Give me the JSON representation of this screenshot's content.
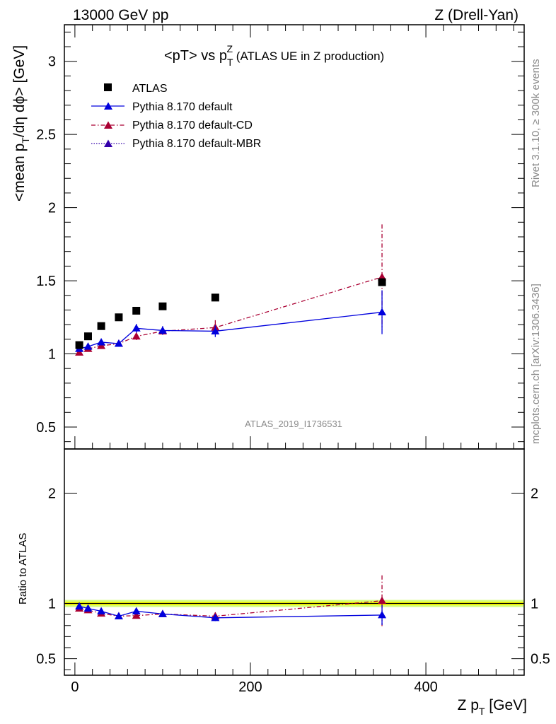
{
  "header": {
    "left": "13000 GeV pp",
    "right": "Z (Drell-Yan)"
  },
  "side_labels": {
    "rivet": "Rivet 3.1.10, ≥ 300k events",
    "mcplots": "mcplots.cern.ch [arXiv:1306.3436]"
  },
  "watermark": "ATLAS_2019_I1736531",
  "colors": {
    "atlas": "#000000",
    "default": "#0000dd",
    "cd": "#aa0033",
    "mbr": "#3300aa",
    "band_inner": "#ffff00",
    "band_outer": "#ccff66"
  },
  "chart_data": [
    {
      "type": "scatter",
      "panel": "main",
      "title_main": "<pT> vs p",
      "title_sup": "Z",
      "title_sub": "T",
      "title_tail": " (ATLAS UE in Z production)",
      "ylabel_pre": "<mean p",
      "ylabel_sub": "T",
      "ylabel_post": "/dη dϕ> [GeV]",
      "xlim": [
        -12,
        512
      ],
      "ylim": [
        0.35,
        3.25
      ],
      "yticks": [
        0.5,
        1,
        1.5,
        2,
        2.5,
        3
      ],
      "ytick_labels": [
        "0.5",
        "1",
        "1.5",
        "2",
        "2.5",
        "3"
      ],
      "legend_position": "top-left",
      "x": [
        5,
        15,
        30,
        50,
        70,
        100,
        160,
        350
      ],
      "series": [
        {
          "name": "ATLAS",
          "style": "markers",
          "values": [
            1.06,
            1.12,
            1.19,
            1.25,
            1.295,
            1.325,
            1.385,
            1.49
          ],
          "errors": [
            0.005,
            0.005,
            0.005,
            0.005,
            0.005,
            0.005,
            0.01,
            0.02
          ]
        },
        {
          "name": "Pythia 8.170 default",
          "style": "solid",
          "values": [
            1.035,
            1.05,
            1.08,
            1.07,
            1.175,
            1.16,
            1.155,
            1.285
          ],
          "errors": [
            0.015,
            0.015,
            0.015,
            0.015,
            0.03,
            0.03,
            0.04,
            0.15
          ]
        },
        {
          "name": "Pythia 8.170 default-CD",
          "style": "dashdot",
          "values": [
            1.01,
            1.035,
            1.055,
            1.07,
            1.12,
            1.155,
            1.18,
            1.525
          ],
          "errors": [
            0.015,
            0.015,
            0.015,
            0.015,
            0.025,
            0.03,
            0.05,
            0.36
          ]
        },
        {
          "name": "Pythia 8.170 default-MBR",
          "style": "dotted",
          "values": [],
          "errors": []
        }
      ]
    },
    {
      "type": "line",
      "panel": "ratio",
      "ylabel": "Ratio to ATLAS",
      "xlabel_pre": "Z p",
      "xlabel_sub": "T",
      "xlabel_post": " [GeV]",
      "xlim": [
        -12,
        512
      ],
      "ylim": [
        0.35,
        2.4
      ],
      "yticks": [
        0.5,
        1,
        2
      ],
      "ytick_labels": [
        "0.5",
        "1",
        "2"
      ],
      "xticks": [
        0,
        200,
        400
      ],
      "xtick_labels": [
        "0",
        "200",
        "400"
      ],
      "x": [
        5,
        15,
        30,
        50,
        70,
        100,
        160,
        350
      ],
      "series": [
        {
          "name": "Pythia 8.170 default",
          "values": [
            0.975,
            0.955,
            0.93,
            0.885,
            0.93,
            0.905,
            0.87,
            0.895
          ],
          "errors": [
            0.015,
            0.015,
            0.015,
            0.015,
            0.025,
            0.025,
            0.03,
            0.09
          ]
        },
        {
          "name": "Pythia 8.170 default-CD",
          "values": [
            0.955,
            0.94,
            0.91,
            0.885,
            0.89,
            0.905,
            0.885,
            1.025
          ],
          "errors": [
            0.015,
            0.015,
            0.015,
            0.015,
            0.02,
            0.025,
            0.035,
            0.23
          ]
        }
      ]
    }
  ]
}
